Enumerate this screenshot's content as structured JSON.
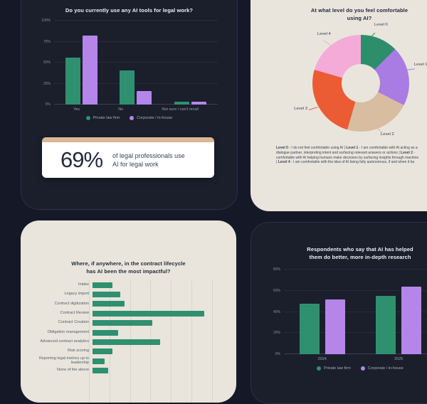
{
  "colors": {
    "background": "#151927",
    "panel_dark": "#1a1f2b",
    "panel_dark_border": "#2b3143",
    "panel_cream": "#e9e5dc",
    "green": "#2f9070",
    "purple": "#b685ea",
    "stat_accent": "#d8b794",
    "donut_green": "#2e8e6c",
    "donut_purple": "#a87ce2",
    "donut_tan": "#d8bda0",
    "donut_orange": "#eb5c35",
    "donut_pink": "#f4abd7"
  },
  "usage_panel": {
    "title": "Do you currently use any AI tools for legal work?",
    "legend": [
      {
        "label": "Private law firm",
        "color": "green"
      },
      {
        "label": "Corporate / in-house",
        "color": "purple"
      }
    ],
    "stat_card": {
      "value": "69%",
      "description_line1": "of legal professionals use",
      "description_line2": "AI for legal work"
    }
  },
  "comfort_panel": {
    "title_line1": "At what level do you feel comfortable",
    "title_line2": "using AI?",
    "footnote_lines": [
      [
        {
          "t": "Level 0",
          "b": true
        },
        {
          "t": " - I do not feel comfortable using AI  |  ",
          "b": false
        },
        {
          "t": "Level 1",
          "b": true
        },
        {
          "t": " - I am comfortable with AI acting as a",
          "b": false
        }
      ],
      [
        {
          "t": "dialogue partner, interpreting intent and surfacing relevant answers or actions  |  ",
          "b": false
        },
        {
          "t": "Level 2",
          "b": true
        },
        {
          "t": " -",
          "b": false
        }
      ],
      [
        {
          "t": "comfortable with AI helping humans make decisions by surfacing insights through machine",
          "b": false
        }
      ],
      [
        {
          "t": "|  ",
          "b": false
        },
        {
          "t": "Level 4",
          "b": true
        },
        {
          "t": " - I am comfortable with the idea of AI being fully autonomous, if and when it ha",
          "b": false
        }
      ]
    ]
  },
  "lifecycle_panel": {
    "title_line1": "Where, if anywhere, in the contract lifecycle",
    "title_line2": "has AI been the most impactful?"
  },
  "research_panel": {
    "title_line1": "Respondents who say that AI has helped",
    "title_line2": "them do better, more in-depth research",
    "legend": [
      {
        "label": "Private law firm",
        "color": "green"
      },
      {
        "label": "Corporate / in-house",
        "color": "purple"
      }
    ]
  },
  "chart_data": [
    {
      "id": "usage",
      "type": "bar",
      "title": "Do you currently use any AI tools for legal work?",
      "categories": [
        "Yes",
        "No",
        "Not sure / can't recall"
      ],
      "series": [
        {
          "name": "Private law firm",
          "color": "green",
          "values": [
            56,
            41,
            3
          ]
        },
        {
          "name": "Corporate / in-house",
          "color": "purple",
          "values": [
            82,
            16,
            3
          ]
        }
      ],
      "ylim": [
        0,
        100
      ],
      "yticks": [
        "0%",
        "25%",
        "50%",
        "75%",
        "100%"
      ],
      "grid": true,
      "legend_position": "bottom"
    },
    {
      "id": "comfort",
      "type": "pie",
      "donut": true,
      "title": "At what level do you feel comfortable using AI?",
      "slices": [
        {
          "label": "Level 0",
          "value": 12.5,
          "color": "donut_green"
        },
        {
          "label": "Level 1",
          "value": 20,
          "color": "donut_purple"
        },
        {
          "label": "Level 2",
          "value": 22,
          "color": "donut_tan"
        },
        {
          "label": "Level 3",
          "value": 25,
          "color": "donut_orange"
        },
        {
          "label": "Level 4",
          "value": 20.5,
          "color": "donut_pink"
        }
      ],
      "start_angle_deg": 0,
      "direction": "clockwise"
    },
    {
      "id": "lifecycle",
      "type": "bar",
      "orientation": "horizontal",
      "title": "Where, if anywhere, in the contract lifecycle has AI been the most impactful?",
      "categories": [
        "Intake",
        "Legacy import",
        "Contract digitization",
        "Contract Review",
        "Contract Creation",
        "Obligation management",
        "Advanced contract analytics",
        "Risk scoring",
        "Reporting legal metrics up to leadership",
        "None of the above"
      ],
      "values": [
        10,
        14,
        16,
        56,
        30,
        13,
        34,
        10,
        6,
        8
      ],
      "xlim": [
        0,
        65
      ],
      "gridline_step": 10,
      "bar_color": "green",
      "grid": true
    },
    {
      "id": "research",
      "type": "bar",
      "title": "Respondents who say that AI has helped them do better, more in-depth research",
      "categories": [
        "2024",
        "2025"
      ],
      "series": [
        {
          "name": "Private law firm",
          "color": "green",
          "values": [
            48,
            55
          ]
        },
        {
          "name": "Corporate / in-house",
          "color": "purple",
          "values": [
            52,
            64
          ]
        }
      ],
      "ylim": [
        0,
        80
      ],
      "yticks": [
        "0%",
        "20%",
        "40%",
        "60%",
        "80%"
      ],
      "grid": true,
      "legend_position": "bottom"
    }
  ]
}
